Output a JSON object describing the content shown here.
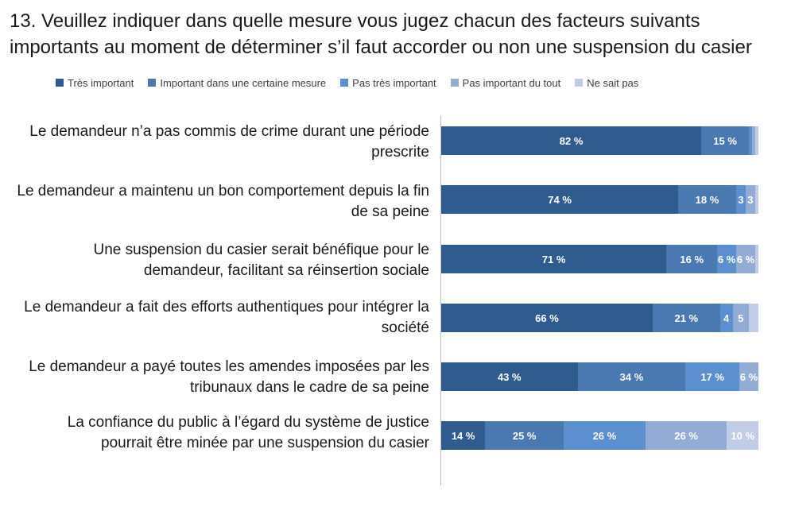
{
  "title": "13.  Veuillez indiquer dans quelle mesure vous jugez chacun des facteurs suivants importants au moment de déterminer s’il faut accorder ou non une suspension du casier",
  "colors": {
    "tres_important": "#2f5b8e",
    "certaine_mesure": "#4a78b0",
    "pas_tres": "#5b8fd0",
    "pas_du_tout": "#93acd6",
    "ne_sait_pas": "#c1cde6"
  },
  "chart_data": {
    "type": "bar",
    "orientation": "horizontal-stacked-100",
    "legend_position": "top",
    "grid": false,
    "xlim": [
      0,
      100
    ],
    "legend": [
      "Très important",
      "Important dans une certaine mesure",
      "Pas très important",
      "Pas important du tout",
      "Ne sait pas"
    ],
    "categories": [
      "Le demandeur n’a pas commis de crime durant une période prescrite",
      "Le demandeur a maintenu un bon comportement depuis la fin de sa peine",
      "Une suspension du casier serait bénéfique pour le demandeur, facilitant sa réinsertion sociale",
      "Le demandeur a fait des efforts authentiques pour intégrer la société",
      "Le demandeur a payé toutes les amendes imposées par les tribunaux dans le cadre de sa peine",
      "La confiance du public à l’égard du système de justice pourrait être minée par une suspension du casier"
    ],
    "series": [
      {
        "name": "Très important",
        "values": [
          82,
          74,
          71,
          66,
          43,
          14
        ],
        "labels": [
          "82 %",
          "74 %",
          "71 %",
          "66 %",
          "43 %",
          "14 %"
        ]
      },
      {
        "name": "Important dans une certaine mesure",
        "values": [
          15,
          18,
          16,
          21,
          34,
          25
        ],
        "labels": [
          "15 %",
          "18 %",
          "16 %",
          "21 %",
          "34 %",
          "25 %"
        ]
      },
      {
        "name": "Pas très important",
        "values": [
          1,
          3,
          6,
          4,
          17,
          26
        ],
        "labels": [
          "",
          "3",
          "6 %",
          "4",
          "17 %",
          "26 %"
        ]
      },
      {
        "name": "Pas important du tout",
        "values": [
          1,
          3,
          6,
          5,
          6,
          26
        ],
        "labels": [
          "",
          "3",
          "6 %",
          "5",
          "6 %",
          "26 %"
        ]
      },
      {
        "name": "Ne sait pas",
        "values": [
          1,
          1,
          1,
          3,
          0,
          10
        ],
        "labels": [
          "",
          "",
          "",
          "",
          "",
          "10 %"
        ]
      }
    ]
  }
}
